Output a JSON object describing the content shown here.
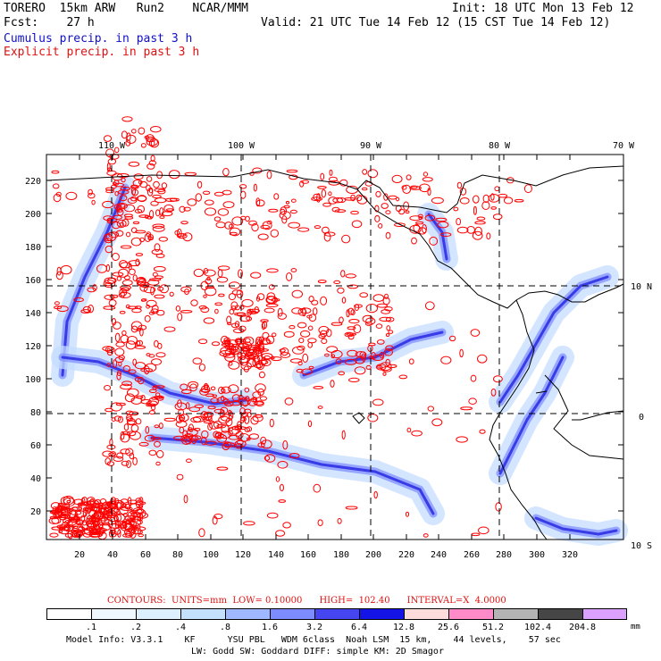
{
  "header": {
    "line1_left": "TORERO  15km ARW   Run2    NCAR/MMM",
    "line1_right": "Init: 18 UTC Mon 13 Feb 12",
    "line2_left": "Fcst:    27 h",
    "line2_right": "Valid: 21 UTC Tue 14 Feb 12 (15 CST Tue 14 Feb 12)",
    "cumulus_label": "Cumulus precip. in past 3 h",
    "explicit_label": "Explicit precip. in past 3 h"
  },
  "map": {
    "lon_labels": [
      "110 W",
      "100 W",
      "90 W",
      "80 W",
      "70 W"
    ],
    "lat_labels": [
      "10 N",
      "0",
      "10 S"
    ],
    "x_ticks": [
      "20",
      "40",
      "60",
      "80",
      "100",
      "120",
      "140",
      "160",
      "180",
      "200",
      "220",
      "240",
      "260",
      "280",
      "300",
      "320"
    ],
    "y_ticks": [
      "20",
      "40",
      "60",
      "80",
      "100",
      "120",
      "140",
      "160",
      "180",
      "200",
      "220"
    ],
    "colors": {
      "cumulus": "#3c3cf0",
      "explicit_contour": "#ff0000",
      "coast": "#000000"
    }
  },
  "contours": {
    "text": "CONTOURS:  UNITS=mm  LOW= 0.10000      HIGH=  102.40      INTERVAL=X  4.0000"
  },
  "legend": {
    "labels": [
      ".1",
      ".2",
      ".4",
      ".8",
      "1.6",
      "3.2",
      "6.4",
      "12.8",
      "25.6",
      "51.2",
      "102.4",
      "204.8"
    ],
    "colors": [
      "#ffffff",
      "#f0f8ff",
      "#dcf0ff",
      "#c4e0ff",
      "#a0b8ff",
      "#7c8cff",
      "#4646f0",
      "#1414e6",
      "#ffdcdc",
      "#ff8cc8",
      "#b4b4b4",
      "#464646",
      "#dca0ff"
    ],
    "units": "mm"
  },
  "footer": {
    "line1": "Model Info: V3.3.1    KF      YSU PBL   WDM 6class  Noah LSM  15 km,    44 levels,    57 sec",
    "line2": "LW: Godd SW: Goddard DIFF: simple KM: 2D Smagor"
  }
}
